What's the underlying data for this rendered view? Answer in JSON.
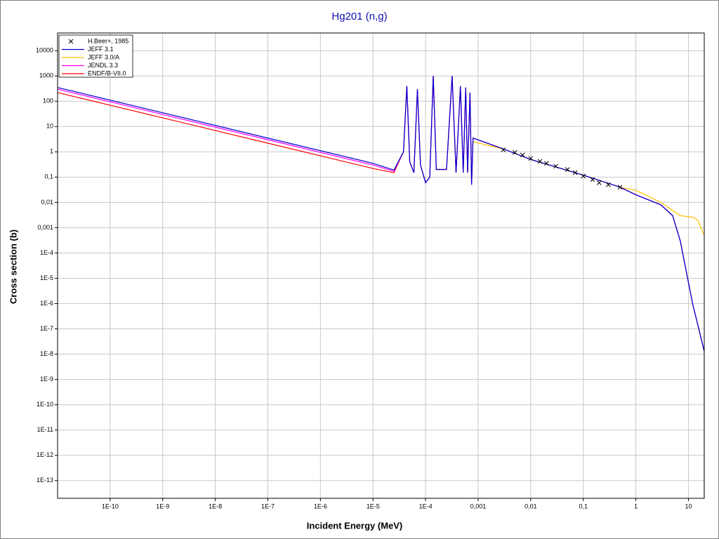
{
  "chart_data": {
    "type": "line",
    "title": "Hg201 (n,g)",
    "x_label": "Incident Energy (MeV)",
    "y_label": "Cross section (b)",
    "xscale": "log",
    "yscale": "log",
    "grid": true,
    "legend": "upper left",
    "xlim": [
      1e-11,
      20
    ],
    "ylim": [
      2e-14,
      50000
    ],
    "xticks": [
      {
        "value": 1e-10,
        "label": "1E-10"
      },
      {
        "value": 1e-09,
        "label": "1E-9"
      },
      {
        "value": 1e-08,
        "label": "1E-8"
      },
      {
        "value": 1e-07,
        "label": "1E-7"
      },
      {
        "value": 1e-06,
        "label": "1E-6"
      },
      {
        "value": 1e-05,
        "label": "1E-5"
      },
      {
        "value": 0.0001,
        "label": "1E-4"
      },
      {
        "value": 0.001,
        "label": "0,001"
      },
      {
        "value": 0.01,
        "label": "0,01"
      },
      {
        "value": 0.1,
        "label": "0,1"
      },
      1,
      10
    ],
    "yticks": [
      10000,
      1000,
      100,
      10,
      1,
      {
        "value": 0.1,
        "label": "0,1"
      },
      {
        "value": 0.01,
        "label": "0,01"
      },
      {
        "value": 0.001,
        "label": "0,001"
      },
      {
        "value": 0.0001,
        "label": "1E-4"
      },
      {
        "value": 1e-05,
        "label": "1E-5"
      },
      {
        "value": 1e-06,
        "label": "1E-6"
      },
      {
        "value": 1e-07,
        "label": "1E-7"
      },
      {
        "value": 1e-08,
        "label": "1E-8"
      },
      {
        "value": 1e-09,
        "label": "1E-9"
      },
      {
        "value": 1e-10,
        "label": "1E-10"
      },
      {
        "value": 1e-11,
        "label": "1E-11"
      },
      {
        "value": 1e-12,
        "label": "1E-12"
      },
      {
        "value": 1e-13,
        "label": "1E-13"
      }
    ],
    "series": [
      {
        "name": "H.Beer+, 1985",
        "color": "#000000",
        "marker": "x",
        "x": [
          0.003,
          0.005,
          0.007,
          0.01,
          0.015,
          0.02,
          0.03,
          0.05,
          0.07,
          0.1,
          0.15,
          0.2,
          0.3,
          0.5
        ],
        "values": [
          1.2,
          0.95,
          0.75,
          0.55,
          0.42,
          0.35,
          0.27,
          0.2,
          0.15,
          0.11,
          0.08,
          0.06,
          0.05,
          0.04
        ]
      },
      {
        "name": "JEFF 3.1",
        "color": "#0000cc",
        "x": [
          1e-11,
          1e-09,
          1e-07,
          1e-05,
          2.5e-05,
          3.8e-05,
          4.4e-05,
          5e-05,
          6e-05,
          7e-05,
          8e-05,
          0.0001,
          0.00012,
          0.00014,
          0.00016,
          0.00025,
          0.00032,
          0.00038,
          0.00046,
          0.00052,
          0.00058,
          0.00063,
          0.0007,
          0.00075,
          0.0008,
          0.003,
          0.01,
          0.1,
          0.5,
          1,
          3,
          5,
          7,
          12,
          20
        ],
        "values": [
          350,
          35,
          3.5,
          0.35,
          0.19,
          1,
          400,
          0.4,
          0.15,
          300,
          0.3,
          0.06,
          0.1,
          1000,
          0.2,
          0.2,
          1000,
          0.15,
          400,
          0.15,
          350,
          0.15,
          220,
          0.05,
          3.5,
          1.3,
          0.5,
          0.12,
          0.04,
          0.02,
          0.008,
          0.003,
          0.0003,
          1e-06,
          1.3e-08
        ]
      },
      {
        "name": "JEFF 3.0/A",
        "color": "#ffc000",
        "x": [
          0.0008,
          0.003,
          0.01,
          0.1,
          0.5,
          1,
          3,
          7,
          12,
          15,
          20
        ],
        "values": [
          2.5,
          1.3,
          0.5,
          0.12,
          0.04,
          0.03,
          0.01,
          0.003,
          0.0026,
          0.002,
          0.0005
        ]
      },
      {
        "name": "JENDL 3.3",
        "color": "#ff00ff",
        "x": [
          1e-11,
          1e-09,
          1e-07,
          1e-05,
          2.5e-05,
          3.8e-05,
          4.4e-05,
          5e-05,
          6e-05,
          7e-05,
          8e-05,
          0.0001,
          0.00012,
          0.00014,
          0.00016,
          0.00025,
          0.00032,
          0.00038,
          0.00046,
          0.00052,
          0.00058,
          0.00063,
          0.0007,
          0.00075,
          0.0008,
          0.003,
          0.01,
          0.1,
          0.5,
          1,
          3,
          5,
          7,
          12,
          20
        ],
        "values": [
          300,
          30,
          3,
          0.3,
          0.17,
          1,
          400,
          0.4,
          0.15,
          300,
          0.3,
          0.06,
          0.1,
          1000,
          0.2,
          0.2,
          1000,
          0.15,
          400,
          0.15,
          350,
          0.15,
          220,
          0.05,
          3.5,
          1.3,
          0.5,
          0.12,
          0.04,
          0.02,
          0.008,
          0.003,
          0.0003,
          1e-06,
          1.3e-08
        ]
      },
      {
        "name": "ENDF/B-VII.0",
        "color": "#ff0000",
        "x": [
          1e-11,
          1e-09,
          1e-07,
          1e-05,
          2.5e-05,
          3.8e-05,
          4.4e-05,
          5e-05,
          6e-05,
          7e-05,
          8e-05,
          0.0001,
          0.00012,
          0.00014,
          0.00016,
          0.00025,
          0.00032,
          0.00038,
          0.00046,
          0.00052,
          0.00058,
          0.00063,
          0.0007,
          0.00075,
          0.0008,
          0.003,
          0.01,
          0.1,
          0.5,
          1,
          3,
          5,
          7,
          12,
          20,
          20
        ],
        "values": [
          220,
          22,
          2.2,
          0.22,
          0.15,
          1,
          400,
          0.4,
          0.15,
          300,
          0.3,
          0.06,
          0.1,
          1000,
          0.2,
          0.2,
          1000,
          0.15,
          400,
          0.15,
          350,
          0.15,
          220,
          0.05,
          3.5,
          1.3,
          0.5,
          0.12,
          0.04,
          0.02,
          0.008,
          0.003,
          0.0003,
          1e-06,
          1.3e-08,
          2e-14
        ]
      }
    ]
  }
}
